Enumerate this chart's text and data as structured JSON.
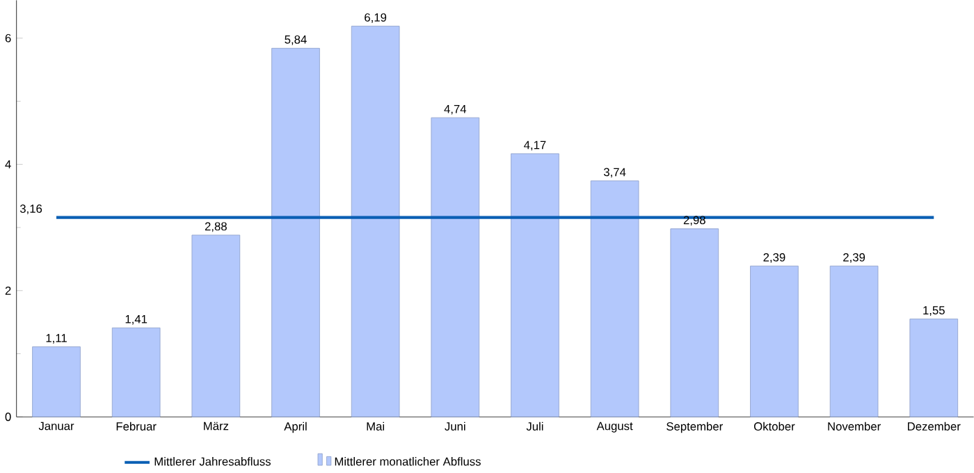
{
  "chart_data": {
    "type": "bar",
    "categories": [
      "Januar",
      "Februar",
      "März",
      "April",
      "Mai",
      "Juni",
      "Juli",
      "August",
      "September",
      "Oktober",
      "November",
      "Dezember"
    ],
    "series": [
      {
        "name": "Mittlerer Jahresabfluss",
        "type": "line",
        "color": "#0a5fb4",
        "values": [
          3.16,
          3.16,
          3.16,
          3.16,
          3.16,
          3.16,
          3.16,
          3.16,
          3.16,
          3.16,
          3.16,
          3.16
        ],
        "value_labels": [
          "3,16",
          null,
          null,
          null,
          null,
          null,
          null,
          null,
          null,
          null,
          null,
          null
        ]
      },
      {
        "name": "Mittlerer monatlicher Abfluss",
        "color": "#b3c8fc",
        "values": [
          1.11,
          1.41,
          2.88,
          5.84,
          6.19,
          4.74,
          4.17,
          3.74,
          2.98,
          2.39,
          2.39,
          1.55
        ],
        "value_labels": [
          "1,11",
          "1,41",
          "2,88",
          "5,84",
          "6,19",
          "4,74",
          "4,17",
          "3,74",
          "2,98",
          "2,39",
          "2,39",
          "1,55"
        ]
      }
    ],
    "ylim": [
      0,
      6.6
    ],
    "yticks": [
      0,
      2,
      4,
      6
    ],
    "legend": "bottom",
    "grid": false
  }
}
